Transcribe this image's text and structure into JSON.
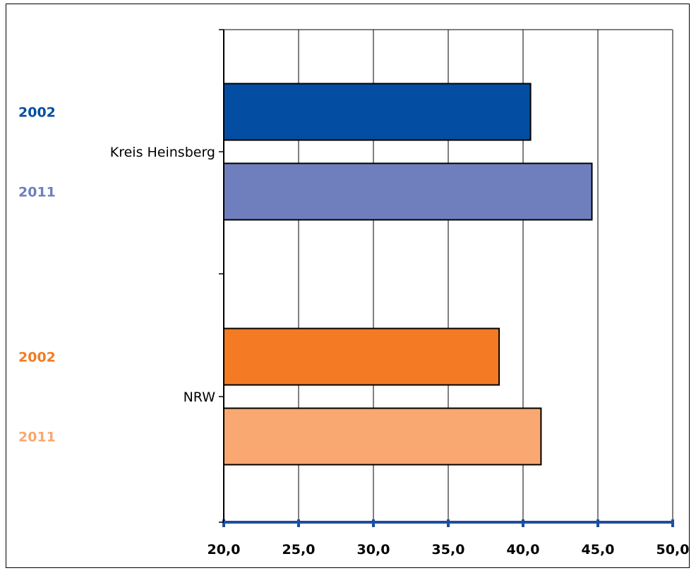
{
  "chart_data": {
    "type": "bar",
    "orientation": "horizontal",
    "xlim": [
      20,
      50
    ],
    "x_ticks": [
      "20,0",
      "25,0",
      "30,0",
      "35,0",
      "40,0",
      "45,0",
      "50,0"
    ],
    "grid": true,
    "groups": [
      {
        "category": "Kreis Heinsberg",
        "bars": [
          {
            "label": "2002",
            "value": 40.5,
            "color": "#034ea2"
          },
          {
            "label": "2011",
            "value": 44.6,
            "color": "#6f7fbe"
          }
        ]
      },
      {
        "category": "NRW",
        "bars": [
          {
            "label": "2002",
            "value": 38.4,
            "color": "#f47b23"
          },
          {
            "label": "2011",
            "value": 41.2,
            "color": "#f9a871"
          }
        ]
      }
    ],
    "colors": {
      "axis": "#1f4e9c",
      "grid": "#000000",
      "frame": "#808080"
    }
  }
}
